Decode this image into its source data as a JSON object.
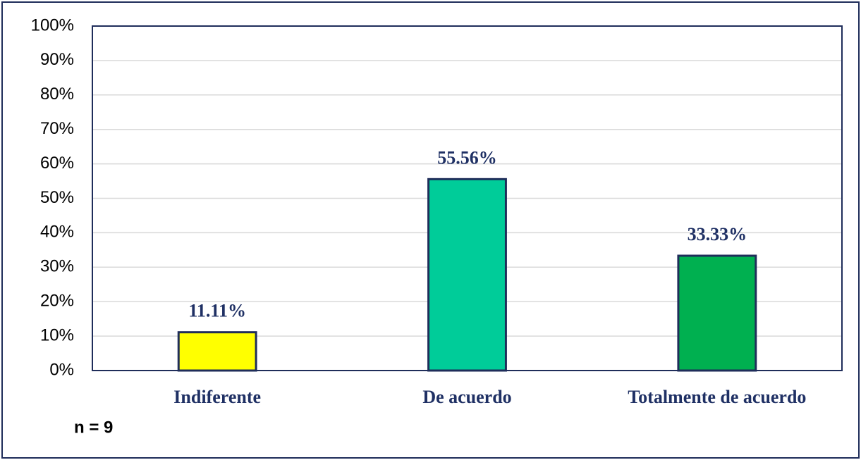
{
  "chart_data": {
    "type": "bar",
    "categories": [
      "Indiferente",
      "De acuerdo",
      "Totalmente de acuerdo"
    ],
    "values": [
      11.11,
      55.56,
      33.33
    ],
    "value_labels": [
      "11.11%",
      "55.56%",
      "33.33%"
    ],
    "colors": [
      "#ffff00",
      "#00cc99",
      "#00b050"
    ],
    "ylim": [
      0,
      100
    ],
    "yticks": [
      {
        "value": 0,
        "label": "0%"
      },
      {
        "value": 10,
        "label": "10%"
      },
      {
        "value": 20,
        "label": "20%"
      },
      {
        "value": 30,
        "label": "30%"
      },
      {
        "value": 40,
        "label": "40%"
      },
      {
        "value": 50,
        "label": "50%"
      },
      {
        "value": 60,
        "label": "60%"
      },
      {
        "value": 70,
        "label": "70%"
      },
      {
        "value": 80,
        "label": "80%"
      },
      {
        "value": 90,
        "label": "90%"
      },
      {
        "value": 100,
        "label": "100%"
      }
    ],
    "grid": true,
    "annotation": "n = 9"
  }
}
